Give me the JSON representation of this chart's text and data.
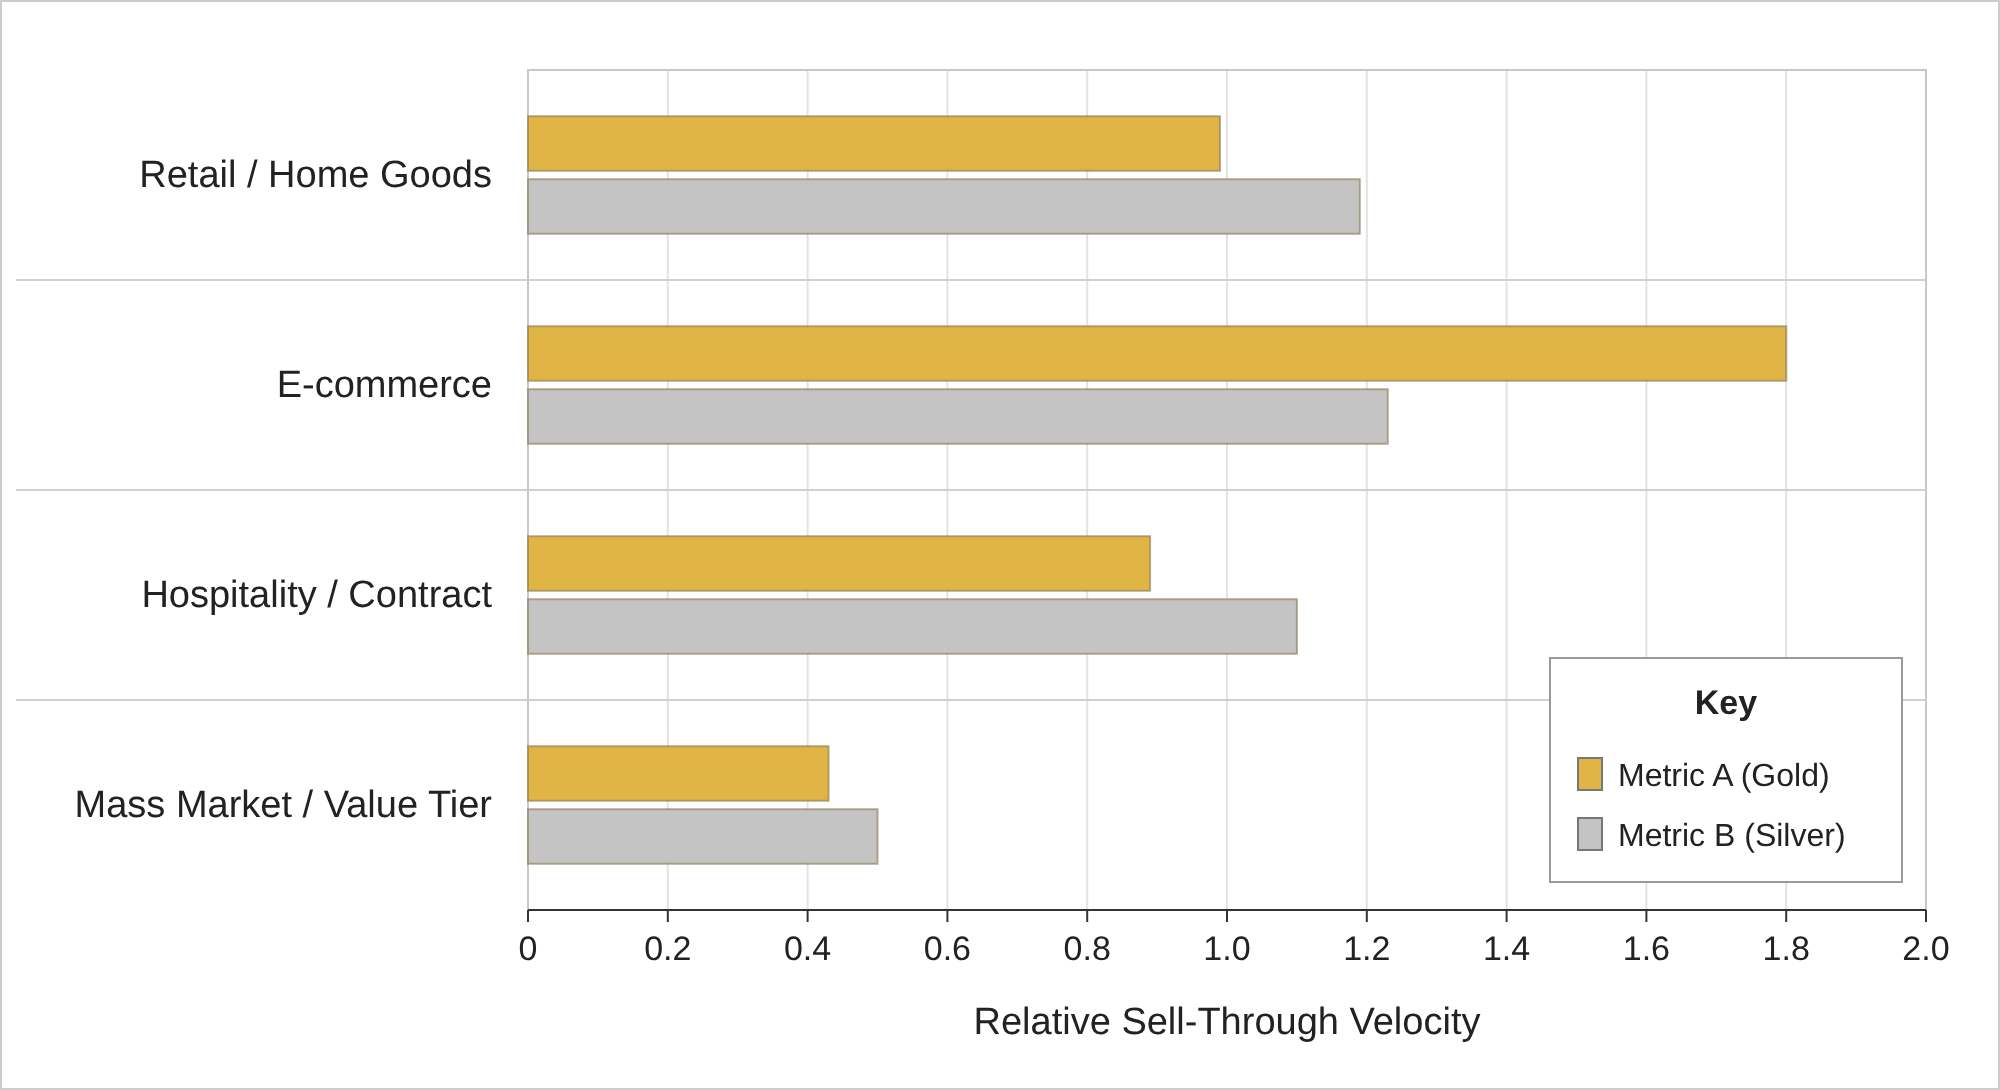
{
  "chart_data": {
    "type": "bar",
    "orientation": "horizontal",
    "xlabel": "Relative Sell-Through Velocity",
    "legend_title": "Key",
    "categories": [
      "Retail / Home Goods",
      "E-commerce",
      "Hospitality / Contract",
      "Mass Market / Value Tier"
    ],
    "series": [
      {
        "name": "Metric A (Gold)",
        "color": "#e0b545",
        "values": [
          0.99,
          1.8,
          0.89,
          0.43
        ]
      },
      {
        "name": "Metric B (Silver)",
        "color": "#c4c4c4",
        "values": [
          1.19,
          1.23,
          1.1,
          0.5
        ]
      }
    ],
    "xlim": [
      0,
      2
    ],
    "xticks": [
      0,
      0.2,
      0.4,
      0.6,
      0.8,
      {
        "value": 1,
        "label": "1.0"
      },
      1.2,
      1.4,
      1.6,
      1.8,
      {
        "value": 2,
        "label": "2.0"
      }
    ],
    "grid": true,
    "legend": "bottom right"
  }
}
